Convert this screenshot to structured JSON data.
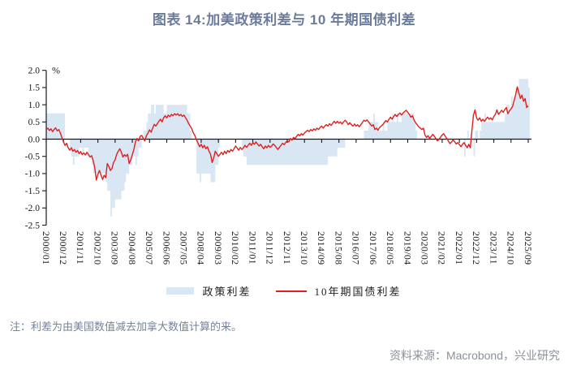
{
  "header": {
    "title": "图表 14:加美政策利差与 10 年期国债利差"
  },
  "footer": {
    "note": "注：利差为由美国数值减去加拿大数值计算的来。",
    "source": "资料来源：Macrobond，兴业研究"
  },
  "colors": {
    "title": "#6b7b9b",
    "note": "#76839b",
    "source": "#8b9099",
    "axis": "#1a1a1a",
    "area": "#d9e6f4",
    "line": "#e0201e"
  },
  "chart_data": {
    "type": "area",
    "subtype": "monthly step-area with overlaid line",
    "title": "图表 14:加美政策利差与 10 年期国债利差",
    "unit_label": "%",
    "ylim": [
      -2.5,
      2.0
    ],
    "y_tick_step": 0.5,
    "y_ticks": [
      "2.0",
      "1.5",
      "1.0",
      "0.5",
      "0.0",
      "-0.5",
      "-1.0",
      "-1.5",
      "-2.0",
      "-2.5"
    ],
    "x_start": "2000/01",
    "x_end": "2025/09",
    "x_tick_interval_months": 11,
    "x_tick_labels": [
      "2000/01",
      "2000/12",
      "2001/11",
      "2002/10",
      "2003/09",
      "2004/08",
      "2005/07",
      "2006/06",
      "2007/05",
      "2008/04",
      "2009/03",
      "2010/02",
      "2011/01",
      "2011/12",
      "2012/11",
      "2013/10",
      "2014/09",
      "2015/08",
      "2016/07",
      "2017/06",
      "2018/05",
      "2019/04",
      "2020/03",
      "2021/02",
      "2022/01",
      "2022/12",
      "2023/11",
      "2024/10",
      "2025/09"
    ],
    "grid": false,
    "legend_position": "bottom-center",
    "series": [
      {
        "name": "政策利差",
        "type": "area-step",
        "color": "#d9e6f4",
        "values": [
          0.75,
          0.75,
          0.75,
          0.75,
          0.75,
          0.75,
          0.75,
          0.75,
          0.75,
          0.75,
          0.75,
          0.75,
          0,
          0,
          0,
          -0.25,
          -0.5,
          -0.75,
          -0.5,
          -0.5,
          -0.5,
          -0.25,
          -0.25,
          -0.5,
          -0.25,
          -0.25,
          -0.25,
          -0.5,
          -0.5,
          -0.75,
          -1,
          -1,
          -1,
          -1,
          -1,
          -1,
          -1,
          -1,
          -1.25,
          -1.5,
          -1.5,
          -2.25,
          -2,
          -2,
          -1.75,
          -1.75,
          -1.75,
          -1.75,
          -1.5,
          -1.5,
          -1.25,
          -1,
          -1,
          -0.75,
          -0.75,
          -0.5,
          -0.5,
          -0.75,
          -0.5,
          -0.25,
          -0.25,
          0,
          0.25,
          0.25,
          0.5,
          0.75,
          0.75,
          1,
          1,
          0.75,
          1,
          1,
          1,
          1,
          1,
          0.75,
          0.75,
          1,
          1,
          1,
          1,
          1,
          1,
          1,
          1,
          1,
          1,
          1,
          1,
          1,
          0.75,
          0.75,
          0.25,
          0,
          0,
          0,
          -1,
          -1,
          -1.25,
          -1,
          -1,
          -1,
          -1,
          -1,
          -1,
          -1.25,
          -1.25,
          -1.25,
          -0.75,
          -0.75,
          -0.25,
          0,
          0,
          0,
          0,
          0,
          0,
          0,
          0,
          0,
          0,
          0,
          0,
          0,
          0,
          -0.25,
          -0.5,
          -0.5,
          -0.75,
          -0.75,
          -0.75,
          -0.75,
          -0.75,
          -0.75,
          -0.75,
          -0.75,
          -0.75,
          -0.75,
          -0.75,
          -0.75,
          -0.75,
          -0.75,
          -0.75,
          -0.75,
          -0.75,
          -0.75,
          -0.75,
          -0.75,
          -0.75,
          -0.75,
          -0.75,
          -0.75,
          -0.75,
          -0.75,
          -0.75,
          -0.75,
          -0.75,
          -0.75,
          -0.75,
          -0.75,
          -0.75,
          -0.75,
          -0.75,
          -0.75,
          -0.75,
          -0.75,
          -0.75,
          -0.75,
          -0.75,
          -0.75,
          -0.75,
          -0.75,
          -0.75,
          -0.75,
          -0.75,
          -0.75,
          -0.75,
          -0.75,
          -0.75,
          -0.75,
          -0.5,
          -0.5,
          -0.5,
          -0.5,
          -0.5,
          -0.5,
          -0.25,
          -0.25,
          -0.25,
          -0.25,
          -0.25,
          0,
          0,
          0,
          0,
          0,
          0,
          0,
          0,
          0,
          0,
          0,
          0,
          0.25,
          0.25,
          0.25,
          0.5,
          0.5,
          0.5,
          0.75,
          0.5,
          0.5,
          0.25,
          0.25,
          0.25,
          0.5,
          0.25,
          0.25,
          0.5,
          0.5,
          0.5,
          0.75,
          0.5,
          0.5,
          0.75,
          0.5,
          0.5,
          0.75,
          0.75,
          0.75,
          0.75,
          0.75,
          0.75,
          0.75,
          0.75,
          0.5,
          0.25,
          0,
          0,
          0,
          0,
          0,
          0,
          0,
          0,
          0,
          0,
          0,
          0,
          0,
          0,
          0,
          0,
          0,
          0,
          0,
          0,
          0,
          0,
          0,
          0,
          0,
          0,
          0,
          0,
          0,
          0,
          -0.5,
          0,
          0.25,
          0,
          0,
          0,
          -0.5,
          0.25,
          0.25,
          0,
          0.25,
          0.5,
          0.5,
          0.75,
          0.5,
          0.5,
          0.5,
          0.5,
          0.5,
          0.5,
          0.5,
          0.5,
          0.5,
          0.5,
          0.5,
          0.5,
          0.75,
          1,
          1,
          0.75,
          1.25,
          1,
          1.25,
          1.5,
          1.5,
          1.75,
          1.75,
          1.75,
          1.75,
          1.75,
          1.75,
          1.5
        ]
      },
      {
        "name": "10年期国债利差",
        "type": "line",
        "color": "#e0201e",
        "values": [
          0.28,
          0.32,
          0.25,
          0.3,
          0.22,
          0.28,
          0.33,
          0.24,
          0.28,
          0.18,
          0.05,
          -0.08,
          -0.18,
          -0.12,
          -0.25,
          -0.32,
          -0.25,
          -0.35,
          -0.3,
          -0.38,
          -0.33,
          -0.42,
          -0.36,
          -0.45,
          -0.4,
          -0.46,
          -0.38,
          -0.45,
          -0.52,
          -0.48,
          -0.62,
          -0.83,
          -1.19,
          -1.02,
          -0.91,
          -1.05,
          -1.17,
          -1.05,
          -1.12,
          -0.71,
          -0.79,
          -0.91,
          -0.85,
          -0.68,
          -0.6,
          -0.44,
          -0.35,
          -0.28,
          -0.38,
          -0.52,
          -0.45,
          -0.5,
          -0.44,
          -0.71,
          -0.6,
          -0.45,
          -0.3,
          -0.08,
          0.02,
          -0.05,
          0.08,
          0.11,
          0.02,
          -0.05,
          0.1,
          0.18,
          0.27,
          0.2,
          0.32,
          0.43,
          0.38,
          0.45,
          0.52,
          0.58,
          0.5,
          0.62,
          0.68,
          0.62,
          0.7,
          0.65,
          0.72,
          0.68,
          0.74,
          0.7,
          0.74,
          0.68,
          0.72,
          0.66,
          0.7,
          0.62,
          0.55,
          0.45,
          0.38,
          0.3,
          0.18,
          0.1,
          -0.02,
          -0.12,
          -0.22,
          -0.15,
          -0.25,
          -0.18,
          -0.28,
          -0.22,
          -0.35,
          -0.44,
          -0.68,
          -0.55,
          -0.35,
          -0.42,
          -0.5,
          -0.44,
          -0.38,
          -0.45,
          -0.35,
          -0.42,
          -0.33,
          -0.38,
          -0.3,
          -0.35,
          -0.28,
          -0.2,
          -0.26,
          -0.32,
          -0.24,
          -0.3,
          -0.25,
          -0.18,
          -0.24,
          -0.18,
          -0.12,
          -0.18,
          -0.1,
          -0.15,
          -0.08,
          -0.14,
          -0.2,
          -0.15,
          -0.22,
          -0.28,
          -0.2,
          -0.25,
          -0.18,
          -0.24,
          -0.2,
          -0.14,
          -0.18,
          -0.24,
          -0.3,
          -0.24,
          -0.18,
          -0.12,
          -0.16,
          -0.1,
          -0.05,
          -0.08,
          0.02,
          -0.03,
          0.05,
          0.02,
          0.08,
          0.14,
          0.1,
          0.16,
          0.12,
          0.18,
          0.22,
          0.26,
          0.22,
          0.28,
          0.24,
          0.3,
          0.26,
          0.32,
          0.28,
          0.34,
          0.38,
          0.32,
          0.38,
          0.42,
          0.38,
          0.45,
          0.4,
          0.46,
          0.52,
          0.46,
          0.52,
          0.46,
          0.5,
          0.44,
          0.5,
          0.55,
          0.5,
          0.42,
          0.48,
          0.42,
          0.38,
          0.44,
          0.38,
          0.42,
          0.36,
          0.42,
          0.48,
          0.55,
          0.52,
          0.56,
          0.5,
          0.44,
          0.38,
          0.42,
          0.28,
          0.32,
          0.26,
          0.34,
          0.38,
          0.42,
          0.48,
          0.54,
          0.5,
          0.58,
          0.64,
          0.58,
          0.66,
          0.72,
          0.66,
          0.72,
          0.76,
          0.7,
          0.76,
          0.8,
          0.84,
          0.78,
          0.72,
          0.64,
          0.68,
          0.56,
          0.48,
          0.42,
          0.36,
          0.32,
          0.28,
          0.32,
          0.12,
          0.05,
          0.1,
          0.02,
          0.08,
          0.14,
          0.08,
          0.02,
          -0.05,
          0.0,
          0.06,
          0.12,
          0.16,
          0.08,
          0.02,
          -0.06,
          -0.13,
          -0.08,
          -0.02,
          -0.08,
          -0.14,
          -0.1,
          -0.16,
          -0.22,
          -0.15,
          -0.1,
          -0.18,
          -0.25,
          -0.15,
          -0.25,
          0.25,
          0.7,
          0.85,
          0.62,
          0.55,
          0.62,
          0.52,
          0.58,
          0.52,
          0.58,
          0.64,
          0.58,
          0.62,
          0.56,
          0.66,
          0.72,
          0.85,
          0.72,
          0.78,
          0.84,
          0.78,
          0.86,
          0.92,
          0.74,
          0.82,
          0.88,
          0.95,
          1.13,
          1.3,
          1.52,
          1.35,
          1.18,
          1.28,
          1.1,
          1.18,
          0.92,
          0.97
        ]
      }
    ]
  }
}
